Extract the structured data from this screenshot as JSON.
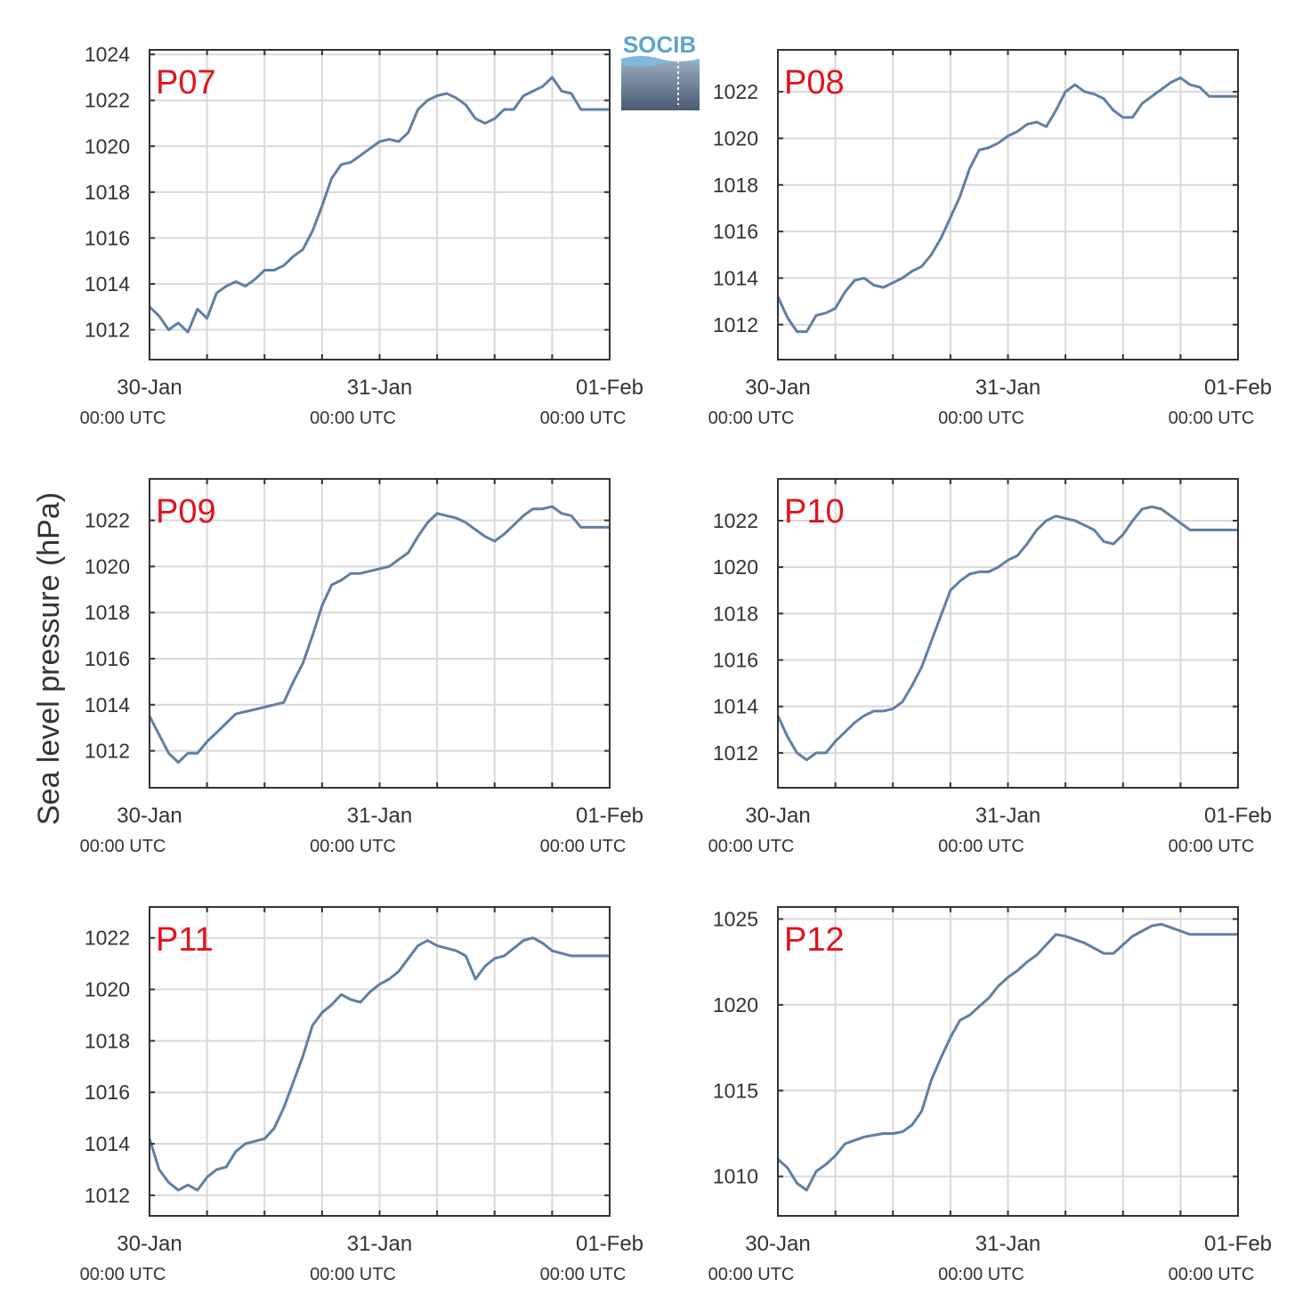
{
  "figure": {
    "ylabel": "Sea level pressure (hPa)",
    "logo_text": "SOCIB"
  },
  "colors": {
    "line": "#5f7fa3",
    "panel_label": "#e0141e",
    "grid": "#d9d9d9",
    "axes": "#333333",
    "logo_top": "#5fa3cc",
    "logo_bottom": "#4a5a70"
  },
  "chart_data": [
    {
      "type": "line",
      "panel": "P07",
      "x_unit": "hours since 30-Jan 00:00 UTC",
      "xlim": [
        0,
        48
      ],
      "ylim": [
        1010.7,
        1024.2
      ],
      "yticks": [
        1012,
        1014,
        1016,
        1018,
        1020,
        1022,
        1024
      ],
      "xticks": [
        {
          "date": "30-Jan",
          "time": "00:00 UTC"
        },
        {
          "date": "31-Jan",
          "time": "00:00 UTC"
        },
        {
          "date": "01-Feb",
          "time": "00:00 UTC"
        }
      ],
      "x": [
        0,
        1,
        2,
        3,
        4,
        5,
        6,
        7,
        8,
        9,
        10,
        11,
        12,
        13,
        14,
        15,
        16,
        17,
        18,
        19,
        20,
        21,
        22,
        23,
        24,
        25,
        26,
        27,
        28,
        29,
        30,
        31,
        32,
        33,
        34,
        35,
        36,
        37,
        38,
        39,
        40,
        41,
        42,
        43,
        44,
        45,
        46,
        47,
        48
      ],
      "y": [
        1013.0,
        1012.6,
        1012.0,
        1012.3,
        1011.9,
        1012.9,
        1012.5,
        1013.6,
        1013.9,
        1014.1,
        1013.9,
        1014.2,
        1014.6,
        1014.6,
        1014.8,
        1015.2,
        1015.5,
        1016.3,
        1017.4,
        1018.6,
        1019.2,
        1019.3,
        1019.6,
        1019.9,
        1020.2,
        1020.3,
        1020.2,
        1020.6,
        1021.6,
        1022.0,
        1022.2,
        1022.3,
        1022.1,
        1021.8,
        1021.2,
        1021.0,
        1021.2,
        1021.6,
        1021.6,
        1022.2,
        1022.4,
        1022.6,
        1023.0,
        1022.4,
        1022.3,
        1021.6,
        1021.6,
        1021.6,
        1021.6
      ]
    },
    {
      "type": "line",
      "panel": "P08",
      "x_unit": "hours since 30-Jan 00:00 UTC",
      "xlim": [
        0,
        48
      ],
      "ylim": [
        1010.5,
        1023.8
      ],
      "yticks": [
        1012,
        1014,
        1016,
        1018,
        1020,
        1022
      ],
      "xticks": [
        {
          "date": "30-Jan",
          "time": "00:00 UTC"
        },
        {
          "date": "31-Jan",
          "time": "00:00 UTC"
        },
        {
          "date": "01-Feb",
          "time": "00:00 UTC"
        }
      ],
      "x": [
        0,
        1,
        2,
        3,
        4,
        5,
        6,
        7,
        8,
        9,
        10,
        11,
        12,
        13,
        14,
        15,
        16,
        17,
        18,
        19,
        20,
        21,
        22,
        23,
        24,
        25,
        26,
        27,
        28,
        29,
        30,
        31,
        32,
        33,
        34,
        35,
        36,
        37,
        38,
        39,
        40,
        41,
        42,
        43,
        44,
        45,
        46,
        47,
        48
      ],
      "y": [
        1013.2,
        1012.3,
        1011.7,
        1011.7,
        1012.4,
        1012.5,
        1012.7,
        1013.4,
        1013.9,
        1014.0,
        1013.7,
        1013.6,
        1013.8,
        1014.0,
        1014.3,
        1014.5,
        1015.0,
        1015.7,
        1016.6,
        1017.5,
        1018.7,
        1019.5,
        1019.6,
        1019.8,
        1020.1,
        1020.3,
        1020.6,
        1020.7,
        1020.5,
        1021.2,
        1022.0,
        1022.3,
        1022.0,
        1021.9,
        1021.7,
        1021.2,
        1020.9,
        1020.9,
        1021.5,
        1021.8,
        1022.1,
        1022.4,
        1022.6,
        1022.3,
        1022.2,
        1021.8,
        1021.8,
        1021.8,
        1021.8
      ]
    },
    {
      "type": "line",
      "panel": "P09",
      "x_unit": "hours since 30-Jan 00:00 UTC",
      "xlim": [
        0,
        48
      ],
      "ylim": [
        1010.4,
        1023.8
      ],
      "yticks": [
        1012,
        1014,
        1016,
        1018,
        1020,
        1022
      ],
      "xticks": [
        {
          "date": "30-Jan",
          "time": "00:00 UTC"
        },
        {
          "date": "31-Jan",
          "time": "00:00 UTC"
        },
        {
          "date": "01-Feb",
          "time": "00:00 UTC"
        }
      ],
      "x": [
        0,
        1,
        2,
        3,
        4,
        5,
        6,
        7,
        8,
        9,
        10,
        11,
        12,
        13,
        14,
        15,
        16,
        17,
        18,
        19,
        20,
        21,
        22,
        23,
        24,
        25,
        26,
        27,
        28,
        29,
        30,
        31,
        32,
        33,
        34,
        35,
        36,
        37,
        38,
        39,
        40,
        41,
        42,
        43,
        44,
        45,
        46,
        47,
        48
      ],
      "y": [
        1013.5,
        1012.7,
        1011.9,
        1011.5,
        1011.9,
        1011.9,
        1012.4,
        1012.8,
        1013.2,
        1013.6,
        1013.7,
        1013.8,
        1013.9,
        1014.0,
        1014.1,
        1015.0,
        1015.8,
        1017.0,
        1018.3,
        1019.2,
        1019.4,
        1019.7,
        1019.7,
        1019.8,
        1019.9,
        1020.0,
        1020.3,
        1020.6,
        1021.3,
        1021.9,
        1022.3,
        1022.2,
        1022.1,
        1021.9,
        1021.6,
        1021.3,
        1021.1,
        1021.4,
        1021.8,
        1022.2,
        1022.5,
        1022.5,
        1022.6,
        1022.3,
        1022.2,
        1021.7,
        1021.7,
        1021.7,
        1021.7
      ]
    },
    {
      "type": "line",
      "panel": "P10",
      "x_unit": "hours since 30-Jan 00:00 UTC",
      "xlim": [
        0,
        48
      ],
      "ylim": [
        1010.5,
        1023.8
      ],
      "yticks": [
        1012,
        1014,
        1016,
        1018,
        1020,
        1022
      ],
      "xticks": [
        {
          "date": "30-Jan",
          "time": "00:00 UTC"
        },
        {
          "date": "31-Jan",
          "time": "00:00 UTC"
        },
        {
          "date": "01-Feb",
          "time": "00:00 UTC"
        }
      ],
      "x": [
        0,
        1,
        2,
        3,
        4,
        5,
        6,
        7,
        8,
        9,
        10,
        11,
        12,
        13,
        14,
        15,
        16,
        17,
        18,
        19,
        20,
        21,
        22,
        23,
        24,
        25,
        26,
        27,
        28,
        29,
        30,
        31,
        32,
        33,
        34,
        35,
        36,
        37,
        38,
        39,
        40,
        41,
        42,
        43,
        44,
        45,
        46,
        47,
        48
      ],
      "y": [
        1013.6,
        1012.7,
        1012.0,
        1011.7,
        1012.0,
        1012.0,
        1012.5,
        1012.9,
        1013.3,
        1013.6,
        1013.8,
        1013.8,
        1013.9,
        1014.2,
        1014.9,
        1015.7,
        1016.8,
        1017.9,
        1019.0,
        1019.4,
        1019.7,
        1019.8,
        1019.8,
        1020.0,
        1020.3,
        1020.5,
        1021.0,
        1021.6,
        1022.0,
        1022.2,
        1022.1,
        1022.0,
        1021.8,
        1021.6,
        1021.1,
        1021.0,
        1021.4,
        1022.0,
        1022.5,
        1022.6,
        1022.5,
        1022.2,
        1021.9,
        1021.6,
        1021.6,
        1021.6,
        1021.6,
        1021.6,
        1021.6
      ]
    },
    {
      "type": "line",
      "panel": "P11",
      "x_unit": "hours since 30-Jan 00:00 UTC",
      "xlim": [
        0,
        48
      ],
      "ylim": [
        1011.2,
        1023.2
      ],
      "yticks": [
        1012,
        1014,
        1016,
        1018,
        1020,
        1022
      ],
      "xticks": [
        {
          "date": "30-Jan",
          "time": "00:00 UTC"
        },
        {
          "date": "31-Jan",
          "time": "00:00 UTC"
        },
        {
          "date": "01-Feb",
          "time": "00:00 UTC"
        }
      ],
      "x": [
        0,
        1,
        2,
        3,
        4,
        5,
        6,
        7,
        8,
        9,
        10,
        11,
        12,
        13,
        14,
        15,
        16,
        17,
        18,
        19,
        20,
        21,
        22,
        23,
        24,
        25,
        26,
        27,
        28,
        29,
        30,
        31,
        32,
        33,
        34,
        35,
        36,
        37,
        38,
        39,
        40,
        41,
        42,
        43,
        44,
        45,
        46,
        47,
        48
      ],
      "y": [
        1014.2,
        1013.0,
        1012.5,
        1012.2,
        1012.4,
        1012.2,
        1012.7,
        1013.0,
        1013.1,
        1013.7,
        1014.0,
        1014.1,
        1014.2,
        1014.6,
        1015.4,
        1016.4,
        1017.4,
        1018.6,
        1019.1,
        1019.4,
        1019.8,
        1019.6,
        1019.5,
        1019.9,
        1020.2,
        1020.4,
        1020.7,
        1021.2,
        1021.7,
        1021.9,
        1021.7,
        1021.6,
        1021.5,
        1021.3,
        1020.4,
        1020.9,
        1021.2,
        1021.3,
        1021.6,
        1021.9,
        1022.0,
        1021.8,
        1021.5,
        1021.4,
        1021.3,
        1021.3,
        1021.3,
        1021.3,
        1021.3
      ]
    },
    {
      "type": "line",
      "panel": "P12",
      "x_unit": "hours since 30-Jan 00:00 UTC",
      "xlim": [
        0,
        48
      ],
      "ylim": [
        1007.7,
        1025.7
      ],
      "yticks": [
        1010,
        1015,
        1020,
        1025
      ],
      "xticks": [
        {
          "date": "30-Jan",
          "time": "00:00 UTC"
        },
        {
          "date": "31-Jan",
          "time": "00:00 UTC"
        },
        {
          "date": "01-Feb",
          "time": "00:00 UTC"
        }
      ],
      "x": [
        0,
        1,
        2,
        3,
        4,
        5,
        6,
        7,
        8,
        9,
        10,
        11,
        12,
        13,
        14,
        15,
        16,
        17,
        18,
        19,
        20,
        21,
        22,
        23,
        24,
        25,
        26,
        27,
        28,
        29,
        30,
        31,
        32,
        33,
        34,
        35,
        36,
        37,
        38,
        39,
        40,
        41,
        42,
        43,
        44,
        45,
        46,
        47,
        48
      ],
      "y": [
        1011.0,
        1010.5,
        1009.6,
        1009.2,
        1010.3,
        1010.7,
        1011.2,
        1011.9,
        1012.1,
        1012.3,
        1012.4,
        1012.5,
        1012.5,
        1012.6,
        1013.0,
        1013.8,
        1015.6,
        1016.9,
        1018.1,
        1019.1,
        1019.4,
        1019.9,
        1020.4,
        1021.1,
        1021.6,
        1022.0,
        1022.5,
        1022.9,
        1023.5,
        1024.1,
        1024.0,
        1023.8,
        1023.6,
        1023.3,
        1023.0,
        1023.0,
        1023.5,
        1024.0,
        1024.3,
        1024.6,
        1024.7,
        1024.5,
        1024.3,
        1024.1,
        1024.1,
        1024.1,
        1024.1,
        1024.1,
        1024.1
      ]
    }
  ]
}
